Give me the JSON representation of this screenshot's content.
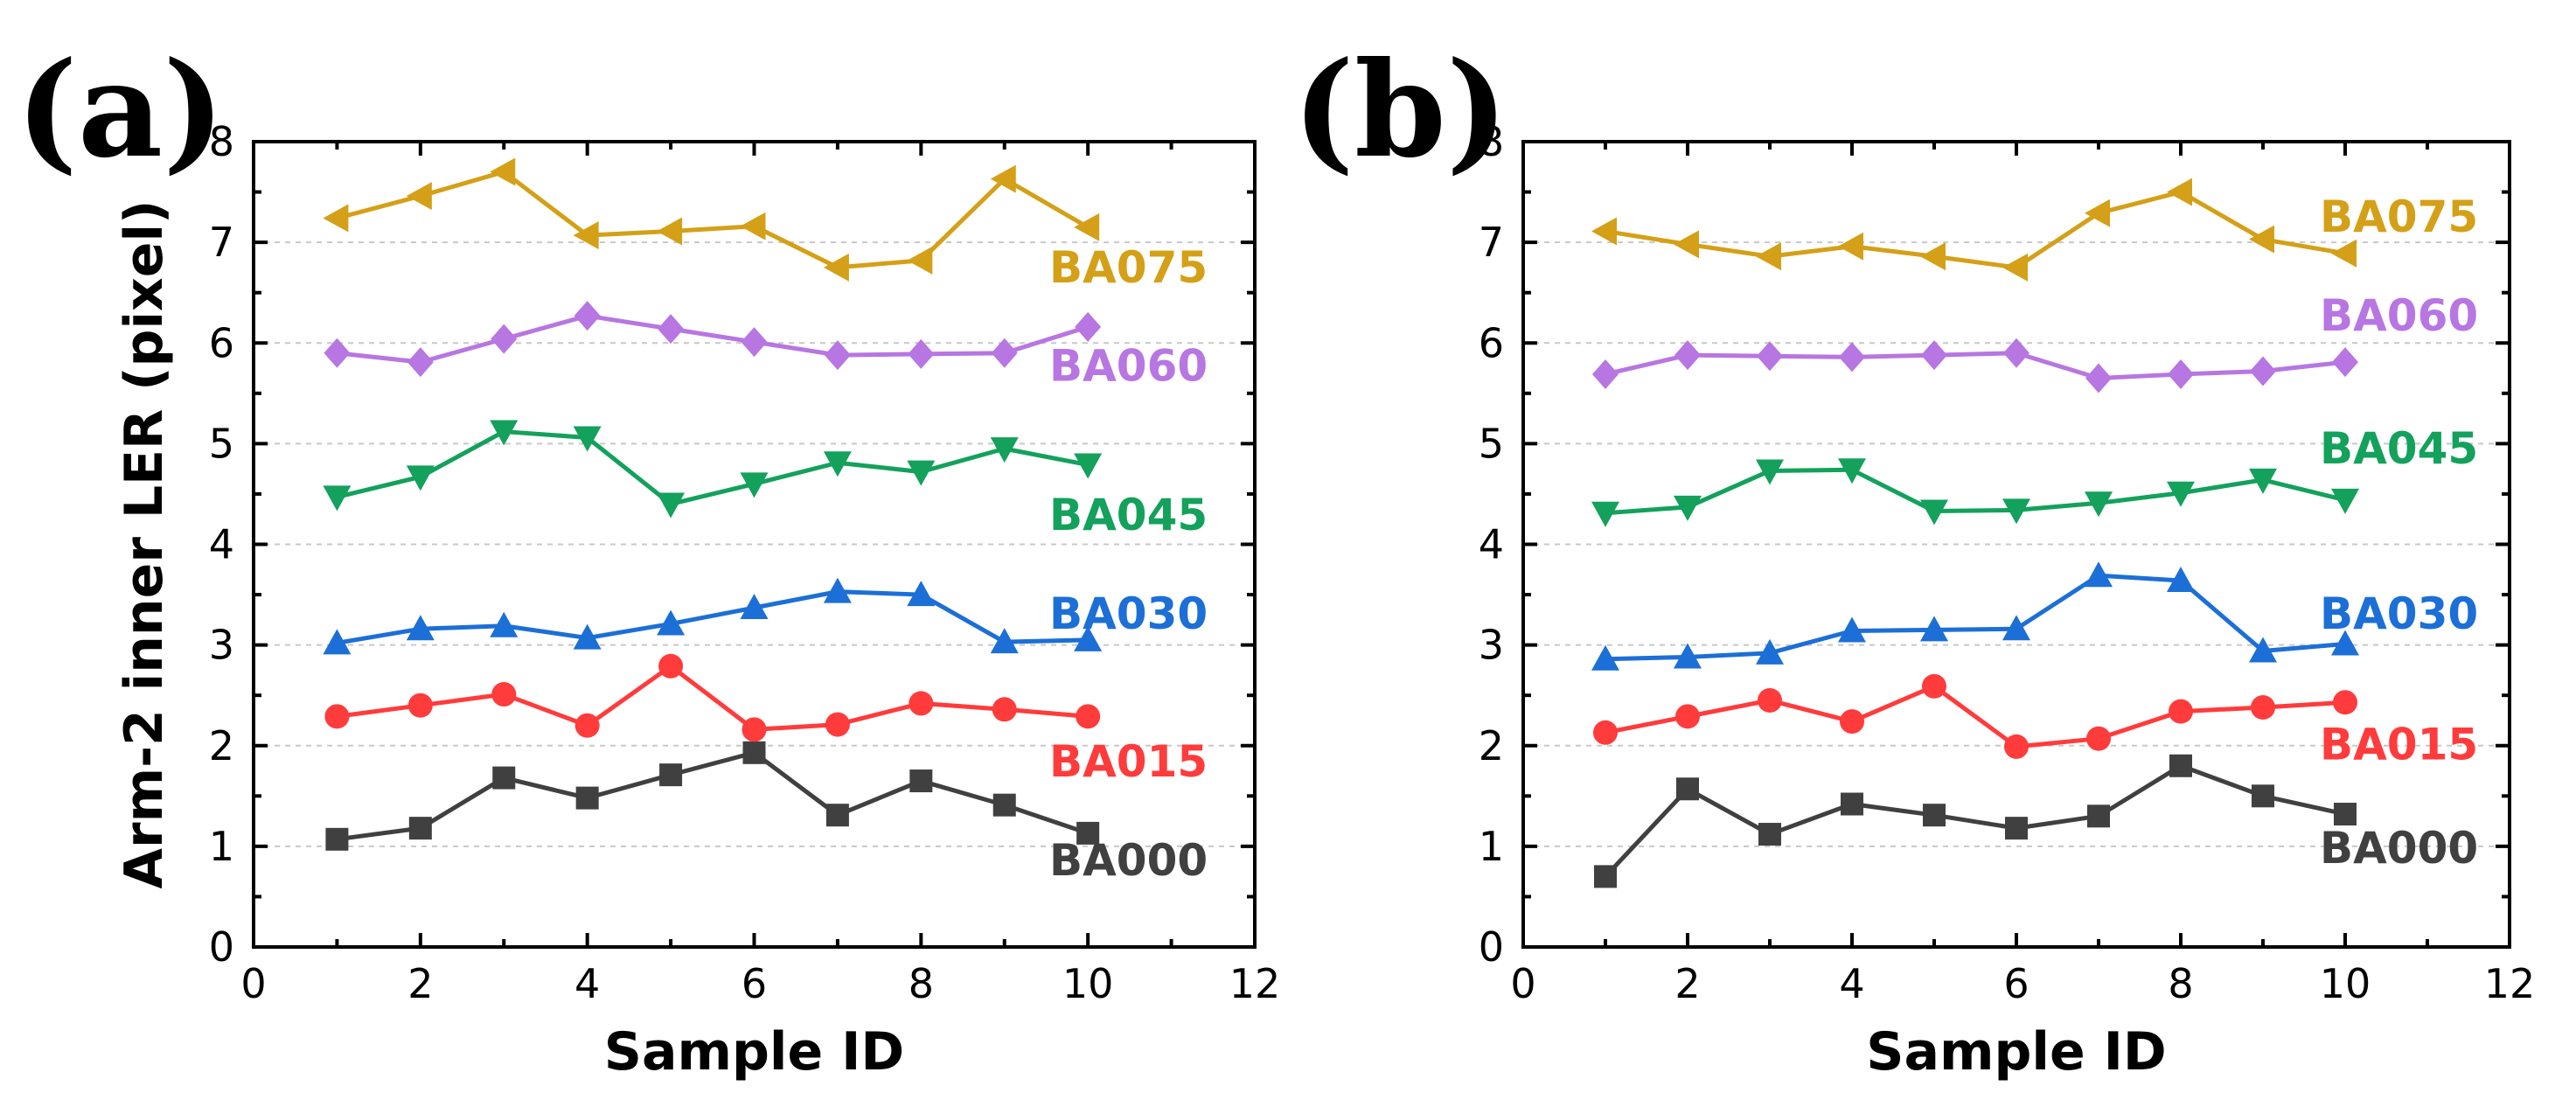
{
  "chart_data": [
    {
      "type": "line",
      "panel_label": "(a)",
      "xlabel": "Sample ID",
      "ylabel": "Arm-2 inner LER (pixel)",
      "xlim": [
        0,
        12
      ],
      "ylim": [
        0,
        8
      ],
      "x_ticks": [
        0,
        2,
        4,
        6,
        8,
        10,
        12
      ],
      "y_ticks": [
        0,
        1,
        2,
        3,
        4,
        5,
        6,
        7,
        8
      ],
      "grid": "horizontal dashed",
      "x": [
        1,
        2,
        3,
        4,
        5,
        6,
        7,
        8,
        9,
        10
      ],
      "series": [
        {
          "name": "BA000",
          "color": "#404040",
          "marker": "square",
          "label_y": 0.87,
          "values": [
            1.07,
            1.18,
            1.68,
            1.48,
            1.71,
            1.93,
            1.31,
            1.65,
            1.41,
            1.13
          ]
        },
        {
          "name": "BA015",
          "color": "#ff3b3b",
          "marker": "circle",
          "label_y": 1.85,
          "values": [
            2.29,
            2.4,
            2.51,
            2.2,
            2.79,
            2.16,
            2.21,
            2.42,
            2.36,
            2.29
          ]
        },
        {
          "name": "BA030",
          "color": "#1c6fd6",
          "marker": "triangle-up",
          "label_y": 3.32,
          "values": [
            3.02,
            3.16,
            3.19,
            3.07,
            3.21,
            3.37,
            3.53,
            3.5,
            3.03,
            3.05
          ]
        },
        {
          "name": "BA045",
          "color": "#13a15c",
          "marker": "triangle-down",
          "label_y": 4.3,
          "values": [
            4.47,
            4.67,
            5.12,
            5.06,
            4.4,
            4.6,
            4.81,
            4.72,
            4.95,
            4.79
          ]
        },
        {
          "name": "BA060",
          "color": "#b776e1",
          "marker": "diamond",
          "label_y": 5.78,
          "values": [
            5.9,
            5.81,
            6.04,
            6.27,
            6.14,
            6.01,
            5.88,
            5.89,
            5.9,
            6.16
          ]
        },
        {
          "name": "BA075",
          "color": "#d4a017",
          "marker": "triangle-left",
          "label_y": 6.76,
          "values": [
            7.24,
            7.46,
            7.7,
            7.07,
            7.11,
            7.16,
            6.75,
            6.82,
            7.63,
            7.15
          ]
        }
      ]
    },
    {
      "type": "line",
      "panel_label": "(b)",
      "xlabel": "Sample ID",
      "ylabel": "",
      "xlim": [
        0,
        12
      ],
      "ylim": [
        0,
        8
      ],
      "x_ticks": [
        0,
        2,
        4,
        6,
        8,
        10,
        12
      ],
      "y_ticks": [
        0,
        1,
        2,
        3,
        4,
        5,
        6,
        7,
        8
      ],
      "grid": "horizontal dashed",
      "x": [
        1,
        2,
        3,
        4,
        5,
        6,
        7,
        8,
        9,
        10
      ],
      "series": [
        {
          "name": "BA000",
          "color": "#404040",
          "marker": "square",
          "label_y": 0.99,
          "values": [
            0.7,
            1.57,
            1.12,
            1.42,
            1.31,
            1.18,
            1.3,
            1.8,
            1.5,
            1.32
          ]
        },
        {
          "name": "BA015",
          "color": "#ff3b3b",
          "marker": "circle",
          "label_y": 2.02,
          "values": [
            2.13,
            2.29,
            2.45,
            2.24,
            2.59,
            1.99,
            2.07,
            2.34,
            2.38,
            2.43
          ]
        },
        {
          "name": "BA030",
          "color": "#1c6fd6",
          "marker": "triangle-up",
          "label_y": 3.32,
          "values": [
            2.86,
            2.88,
            2.92,
            3.14,
            3.15,
            3.16,
            3.69,
            3.64,
            2.94,
            3.01
          ]
        },
        {
          "name": "BA045",
          "color": "#13a15c",
          "marker": "triangle-down",
          "label_y": 4.96,
          "values": [
            4.31,
            4.37,
            4.73,
            4.74,
            4.33,
            4.34,
            4.41,
            4.51,
            4.64,
            4.44
          ]
        },
        {
          "name": "BA060",
          "color": "#b776e1",
          "marker": "diamond",
          "label_y": 6.28,
          "values": [
            5.69,
            5.88,
            5.87,
            5.86,
            5.88,
            5.9,
            5.65,
            5.69,
            5.72,
            5.81
          ]
        },
        {
          "name": "BA075",
          "color": "#d4a017",
          "marker": "triangle-left",
          "label_y": 7.26,
          "values": [
            7.11,
            6.98,
            6.86,
            6.96,
            6.86,
            6.75,
            7.29,
            7.5,
            7.03,
            6.89
          ]
        }
      ]
    }
  ]
}
